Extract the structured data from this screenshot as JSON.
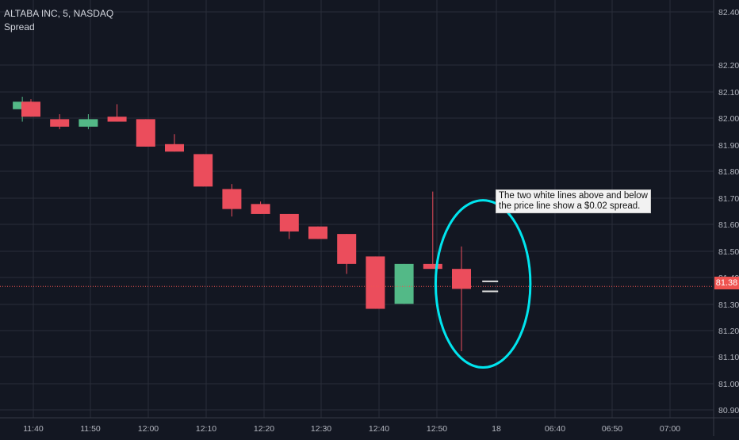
{
  "symbol_title": "ALTABA INC, 5, NASDAQ",
  "indicator_name": "Spread",
  "annotation_lines": [
    "The two white lines above and below",
    "the price line show a $0.02 spread."
  ],
  "colors": {
    "background": "#131722",
    "grid": "#2a2e39",
    "up": "#53b987",
    "down": "#eb4d5c",
    "price_line": "#ef5350",
    "circle": "#00e5ee",
    "axis_text": "#b2b5be",
    "spread_lines": "#e0e0e0"
  },
  "chart_data": {
    "type": "candlestick",
    "title": "ALTABA INC, 5, NASDAQ",
    "x_tick_labels": [
      "11:40",
      "11:50",
      "12:00",
      "12:10",
      "12:20",
      "12:30",
      "12:40",
      "12:50",
      "18",
      "06:40",
      "06:50",
      "07:00"
    ],
    "y_tick_labels": [
      "82.40",
      "82.20",
      "82.10",
      "82.00",
      "81.90",
      "81.80",
      "81.70",
      "81.60",
      "81.50",
      "81.40",
      "81.30",
      "81.20",
      "81.10",
      "81.00",
      "80.90"
    ],
    "ylim": [
      80.885,
      82.48
    ],
    "candles": [
      {
        "slot": -0.3,
        "open": 82.09,
        "high": 82.14,
        "low": 82.04,
        "close": 82.12
      },
      {
        "slot": 0,
        "open": 82.12,
        "high": 82.13,
        "low": 82.06,
        "close": 82.06
      },
      {
        "slot": 1,
        "open": 82.05,
        "high": 82.07,
        "low": 82.01,
        "close": 82.02
      },
      {
        "slot": 2,
        "open": 82.02,
        "high": 82.07,
        "low": 82.01,
        "close": 82.05
      },
      {
        "slot": 3,
        "open": 82.06,
        "high": 82.11,
        "low": 82.04,
        "close": 82.04
      },
      {
        "slot": 4,
        "open": 82.05,
        "high": 82.05,
        "low": 81.94,
        "close": 81.94
      },
      {
        "slot": 5,
        "open": 81.95,
        "high": 81.99,
        "low": 81.92,
        "close": 81.92
      },
      {
        "slot": 6,
        "open": 81.91,
        "high": 81.91,
        "low": 81.78,
        "close": 81.78
      },
      {
        "slot": 7,
        "open": 81.77,
        "high": 81.79,
        "low": 81.66,
        "close": 81.69
      },
      {
        "slot": 8,
        "open": 81.71,
        "high": 81.72,
        "low": 81.67,
        "close": 81.67
      },
      {
        "slot": 9,
        "open": 81.67,
        "high": 81.67,
        "low": 81.57,
        "close": 81.6
      },
      {
        "slot": 10,
        "open": 81.62,
        "high": 81.62,
        "low": 81.57,
        "close": 81.57
      },
      {
        "slot": 11,
        "open": 81.59,
        "high": 81.59,
        "low": 81.43,
        "close": 81.47
      },
      {
        "slot": 12,
        "open": 81.5,
        "high": 81.5,
        "low": 81.29,
        "close": 81.29
      },
      {
        "slot": 13,
        "open": 81.31,
        "high": 81.47,
        "low": 81.31,
        "close": 81.47
      },
      {
        "slot": 14,
        "open": 81.47,
        "high": 81.76,
        "low": 81.46,
        "close": 81.45
      },
      {
        "slot": 15,
        "open": 81.45,
        "high": 81.54,
        "low": 81.12,
        "close": 81.37
      }
    ],
    "current_price": 81.38,
    "spread_lines": {
      "slot": 16,
      "upper": 81.4,
      "lower": 81.36
    },
    "highlight_circle": {
      "center_slot": 15.75,
      "center_price": 81.39,
      "slot_radius": 1.65,
      "price_radius": 0.335
    }
  }
}
